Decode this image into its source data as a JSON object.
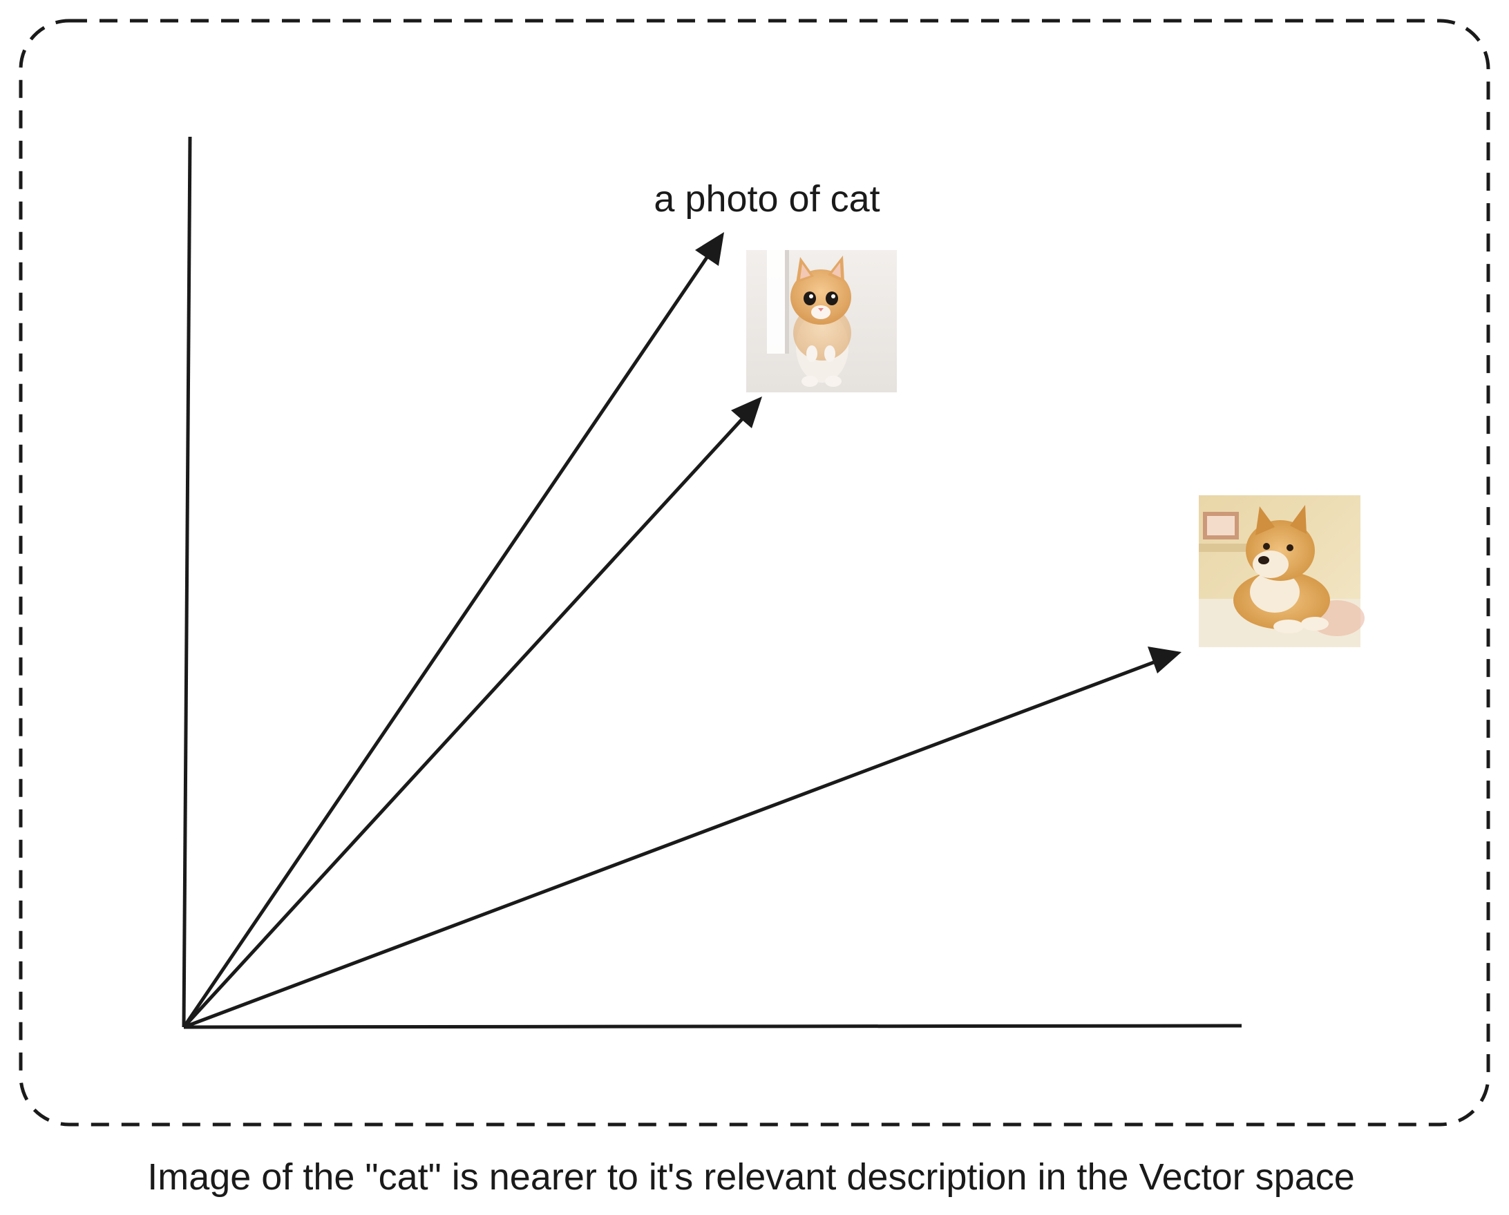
{
  "diagram": {
    "caption": "Image of the \"cat\" is nearer to it's relevant description in the Vector space",
    "vectors": [
      {
        "id": "text-cat",
        "label": "a photo of cat",
        "kind": "text"
      },
      {
        "id": "image-cat",
        "label": "",
        "kind": "image",
        "image": "cat-photo"
      },
      {
        "id": "image-dog",
        "label": "",
        "kind": "image",
        "image": "dog-photo"
      }
    ],
    "colors": {
      "ink": "#1a1a1a",
      "frame": "#1a1a1a",
      "background": "#ffffff"
    }
  }
}
